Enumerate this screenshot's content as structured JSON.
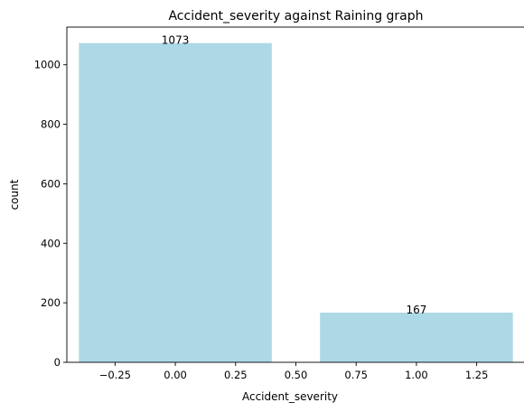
{
  "chart_data": {
    "type": "bar",
    "title": "Accident_severity against Raining graph",
    "xlabel": "Accident_severity",
    "ylabel": "count",
    "bars": [
      {
        "x": 0,
        "width": 0.8,
        "value": 1073,
        "label": "1073"
      },
      {
        "x": 1,
        "width": 0.8,
        "value": 167,
        "label": "167"
      }
    ],
    "xlim": [
      -0.45,
      1.45
    ],
    "ylim": [
      0,
      1126.65
    ],
    "xticks": [
      {
        "value": -0.25,
        "label": "−0.25"
      },
      {
        "value": 0.0,
        "label": "0.00"
      },
      {
        "value": 0.25,
        "label": "0.25"
      },
      {
        "value": 0.5,
        "label": "0.50"
      },
      {
        "value": 0.75,
        "label": "0.75"
      },
      {
        "value": 1.0,
        "label": "1.00"
      },
      {
        "value": 1.25,
        "label": "1.25"
      }
    ],
    "yticks": [
      {
        "value": 0,
        "label": "0"
      },
      {
        "value": 200,
        "label": "200"
      },
      {
        "value": 400,
        "label": "400"
      },
      {
        "value": 600,
        "label": "600"
      },
      {
        "value": 800,
        "label": "800"
      },
      {
        "value": 1000,
        "label": "1000"
      }
    ],
    "grid": false,
    "legend": "none",
    "bar_color": "#add8e6",
    "axis_color": "#000000"
  }
}
